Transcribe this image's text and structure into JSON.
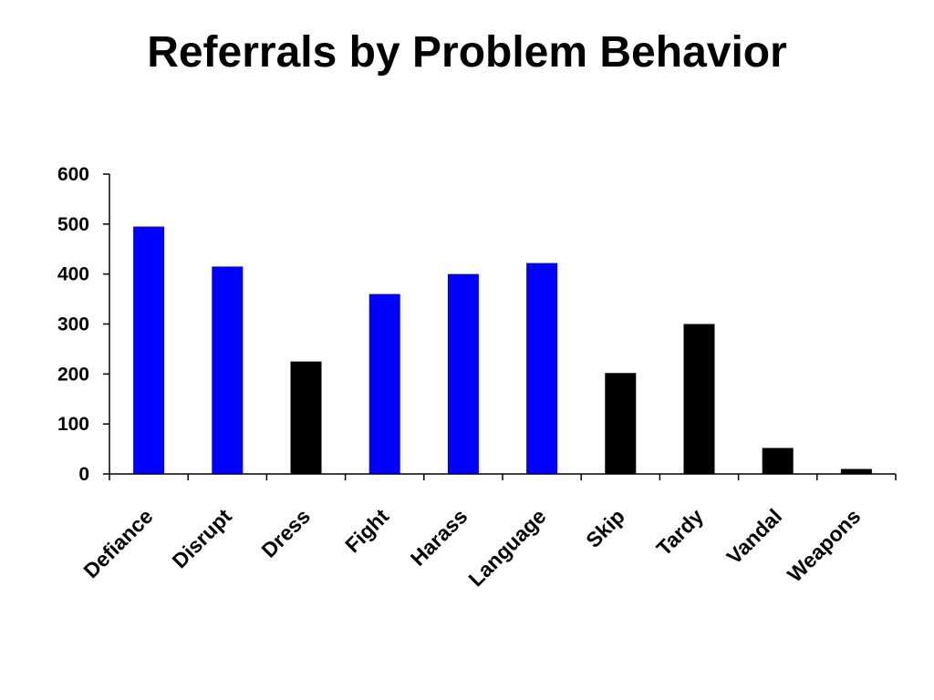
{
  "slide": {
    "title": "Referrals by Problem Behavior"
  },
  "chart_data": {
    "type": "bar",
    "title": "Referrals by Problem Behavior",
    "xlabel": "",
    "ylabel": "",
    "ylim": [
      0,
      600
    ],
    "yticks": [
      0,
      100,
      200,
      300,
      400,
      500,
      600
    ],
    "grid": false,
    "legend": "none",
    "categories": [
      "Defiance",
      "Disrupt",
      "Dress",
      "Fight",
      "Harass",
      "Language",
      "Skip",
      "Tardy",
      "Vandal",
      "Weapons"
    ],
    "values": [
      495,
      415,
      225,
      360,
      400,
      422,
      202,
      300,
      52,
      10
    ],
    "bar_colors": [
      "#0000ff",
      "#0000ff",
      "#000000",
      "#0000ff",
      "#0000ff",
      "#0000ff",
      "#000000",
      "#000000",
      "#000000",
      "#000000"
    ]
  }
}
